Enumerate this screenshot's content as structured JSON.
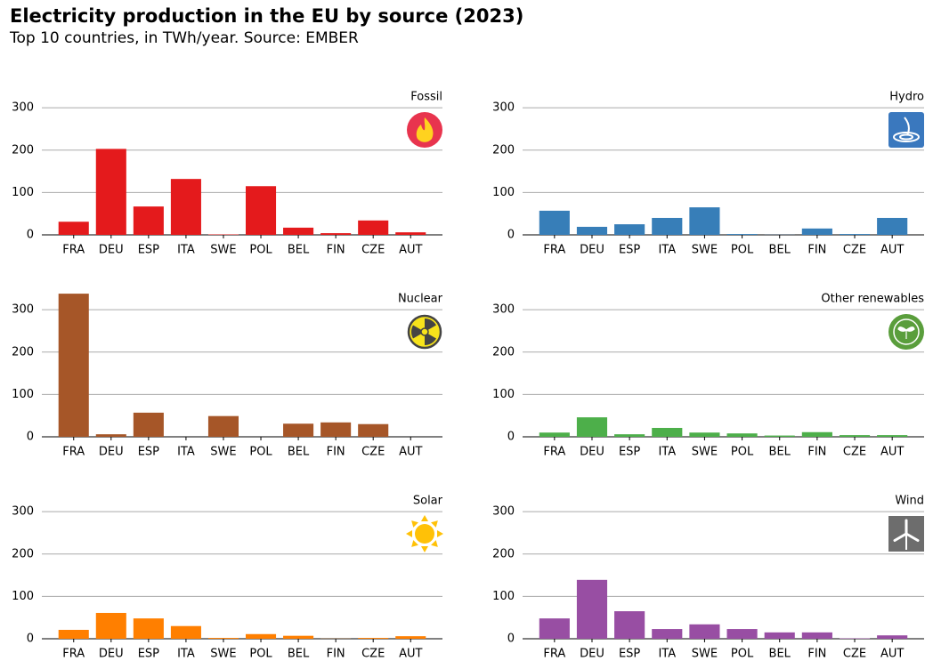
{
  "title": "Electricity production in the EU by source (2023)",
  "subtitle": "Top 10 countries, in TWh/year. Source: EMBER",
  "chart_data": [
    {
      "type": "bar",
      "title": "Fossil",
      "categories": [
        "FRA",
        "DEU",
        "ESP",
        "ITA",
        "SWE",
        "POL",
        "BEL",
        "FIN",
        "CZE",
        "AUT"
      ],
      "values": [
        31,
        203,
        67,
        132,
        1,
        115,
        17,
        4,
        34,
        6
      ],
      "color": "#e41a1c",
      "ylim": [
        0,
        355
      ],
      "yticks": [
        0,
        100,
        200,
        300
      ],
      "grid": true
    },
    {
      "type": "bar",
      "title": "Hydro",
      "categories": [
        "FRA",
        "DEU",
        "ESP",
        "ITA",
        "SWE",
        "POL",
        "BEL",
        "FIN",
        "CZE",
        "AUT"
      ],
      "values": [
        57,
        19,
        25,
        40,
        65,
        2,
        0.3,
        15,
        2,
        40
      ],
      "color": "#377eb8",
      "ylim": [
        0,
        355
      ],
      "yticks": [
        0,
        100,
        200,
        300
      ],
      "grid": true
    },
    {
      "type": "bar",
      "title": "Nuclear",
      "categories": [
        "FRA",
        "DEU",
        "ESP",
        "ITA",
        "SWE",
        "POL",
        "BEL",
        "FIN",
        "CZE",
        "AUT"
      ],
      "values": [
        338,
        6,
        57,
        0,
        49,
        0,
        31,
        34,
        30,
        0
      ],
      "color": "#a65628",
      "ylim": [
        0,
        355
      ],
      "yticks": [
        0,
        100,
        200,
        300
      ],
      "grid": true
    },
    {
      "type": "bar",
      "title": "Other renewables",
      "categories": [
        "FRA",
        "DEU",
        "ESP",
        "ITA",
        "SWE",
        "POL",
        "BEL",
        "FIN",
        "CZE",
        "AUT"
      ],
      "values": [
        10,
        46,
        6,
        21,
        10,
        8,
        3,
        11,
        4,
        4
      ],
      "color": "#4daf4a",
      "ylim": [
        0,
        355
      ],
      "yticks": [
        0,
        100,
        200,
        300
      ],
      "grid": true
    },
    {
      "type": "bar",
      "title": "Solar",
      "categories": [
        "FRA",
        "DEU",
        "ESP",
        "ITA",
        "SWE",
        "POL",
        "BEL",
        "FIN",
        "CZE",
        "AUT"
      ],
      "values": [
        21,
        61,
        48,
        30,
        2,
        11,
        7,
        0.3,
        2,
        6
      ],
      "color": "#ff7f00",
      "ylim": [
        0,
        355
      ],
      "yticks": [
        0,
        100,
        200,
        300
      ],
      "grid": true
    },
    {
      "type": "bar",
      "title": "Wind",
      "categories": [
        "FRA",
        "DEU",
        "ESP",
        "ITA",
        "SWE",
        "POL",
        "BEL",
        "FIN",
        "CZE",
        "AUT"
      ],
      "values": [
        48,
        139,
        65,
        23,
        34,
        23,
        15,
        15,
        1,
        8
      ],
      "color": "#984ea3",
      "ylim": [
        0,
        355
      ],
      "yticks": [
        0,
        100,
        200,
        300
      ],
      "grid": true
    }
  ]
}
